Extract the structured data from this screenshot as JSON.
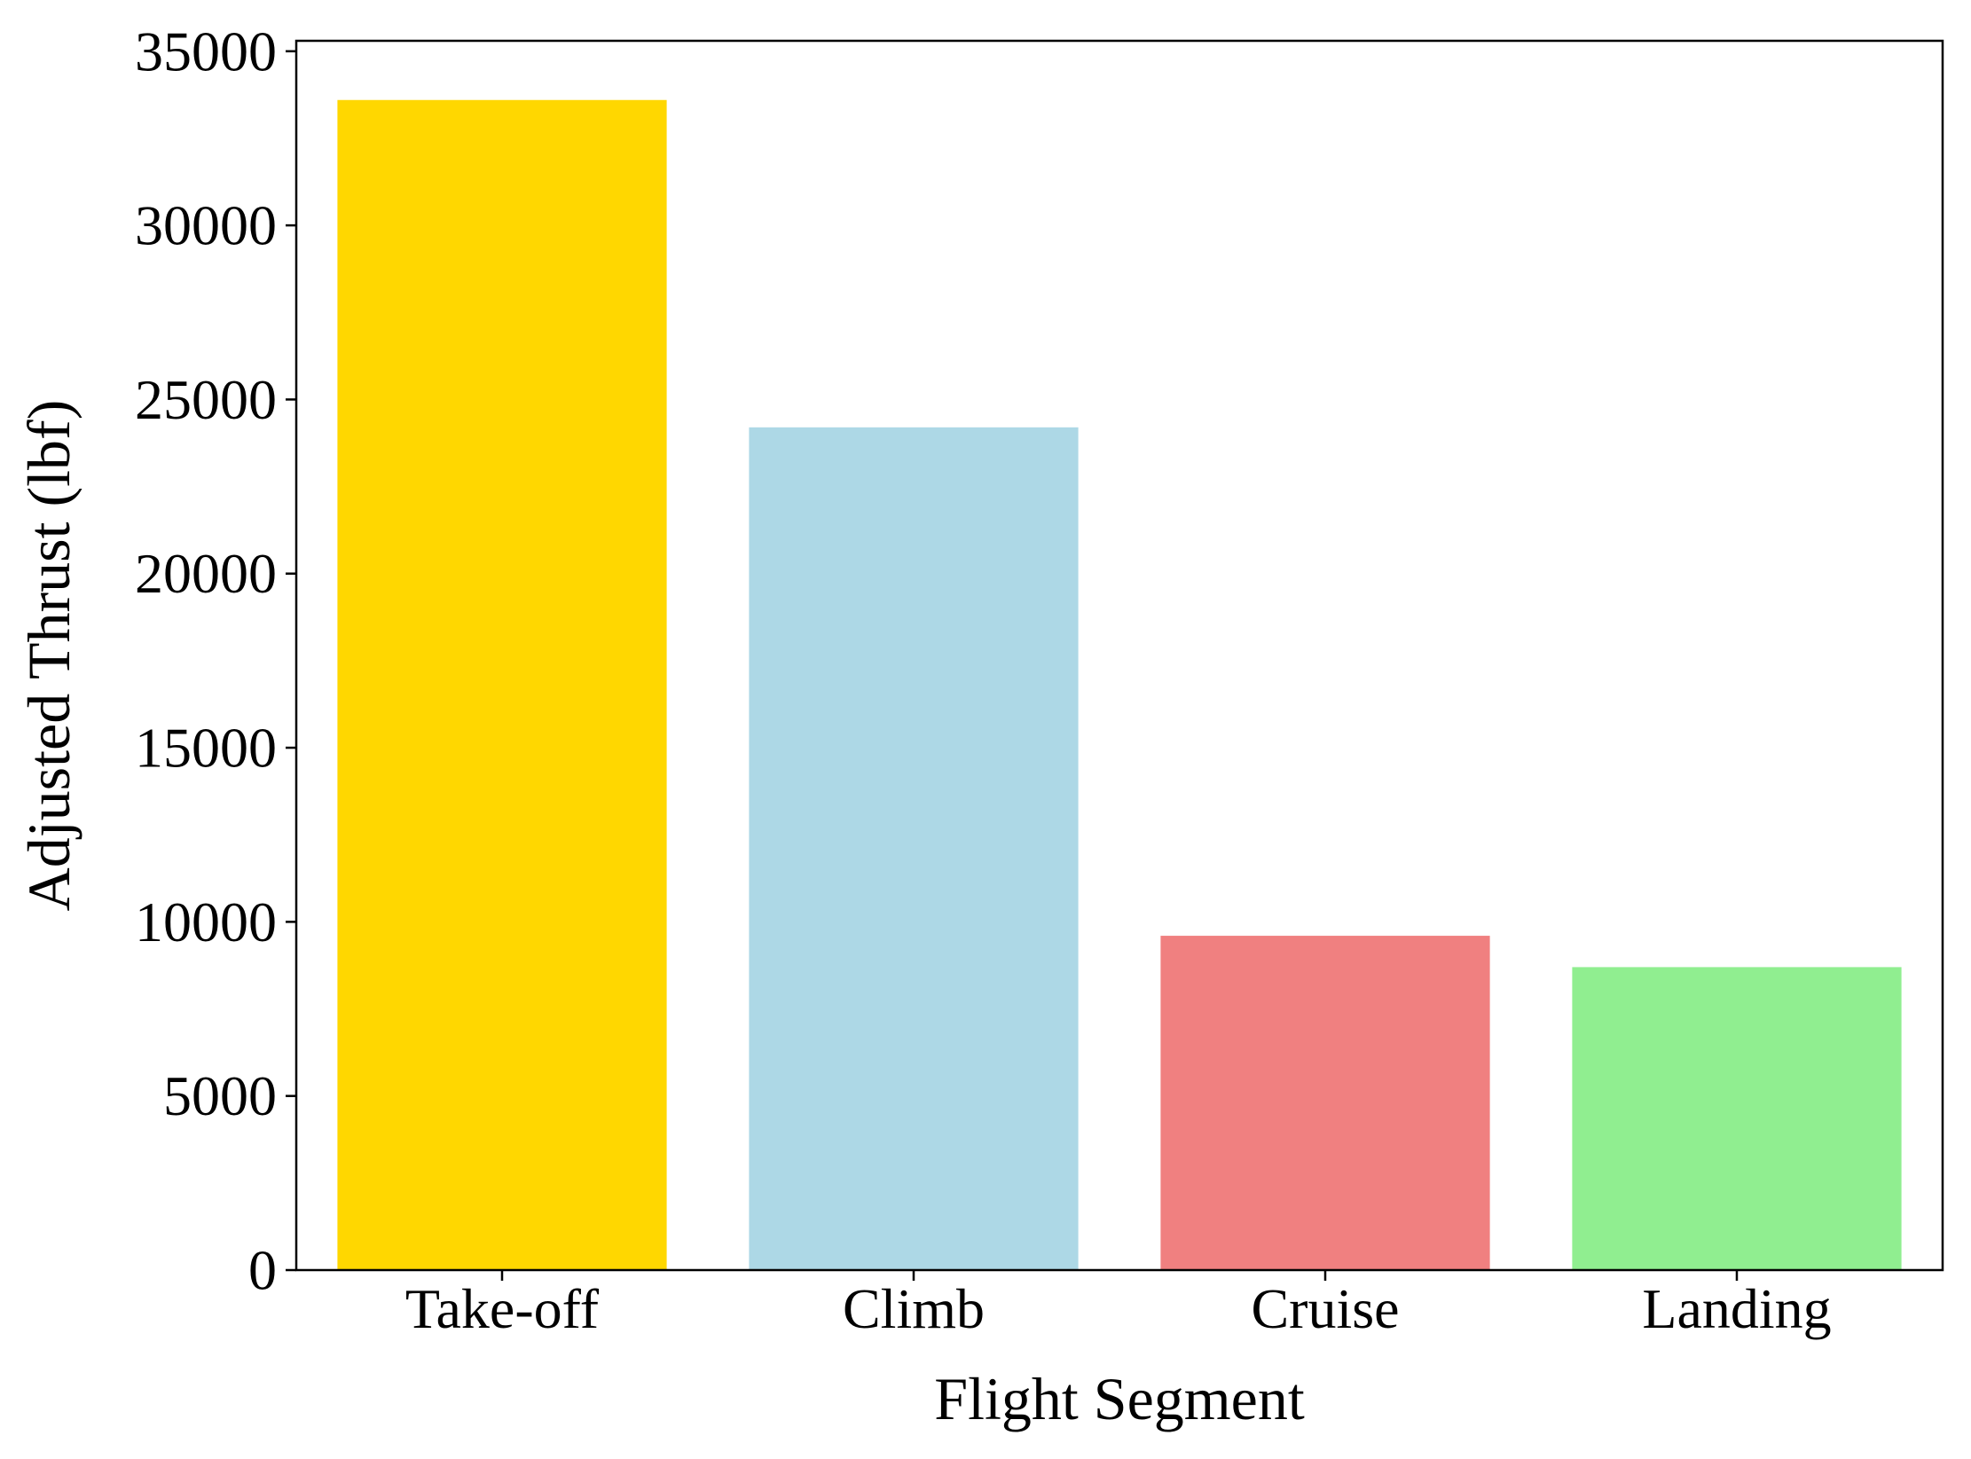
{
  "chart_data": {
    "type": "bar",
    "title": "",
    "xlabel": "Flight Segment",
    "ylabel": "Adjusted Thrust (lbf)",
    "categories": [
      "Take-off",
      "Climb",
      "Cruise",
      "Landing"
    ],
    "values": [
      33600,
      24200,
      9600,
      8700
    ],
    "colors": [
      "#FFD700",
      "#ADD8E6",
      "#F08080",
      "#90EE90"
    ],
    "ylim": [
      0,
      35300
    ],
    "yticks": [
      0,
      5000,
      10000,
      15000,
      20000,
      25000,
      30000,
      35000
    ],
    "ytick_labels": [
      "0",
      "5000",
      "10000",
      "15000",
      "20000",
      "25000",
      "30000",
      "35000"
    ],
    "grid": false,
    "legend": "none"
  }
}
